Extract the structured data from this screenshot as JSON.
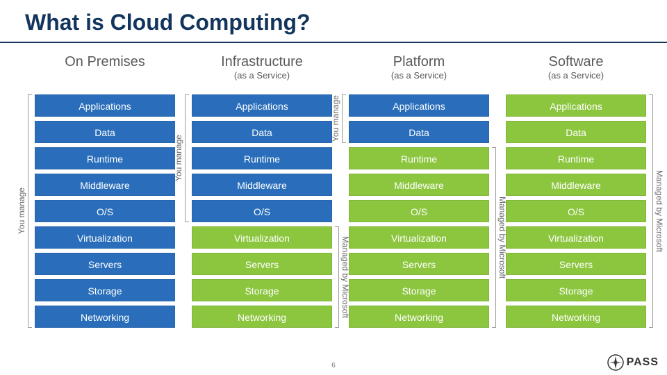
{
  "title": "What is Cloud Computing?",
  "page_number": "6",
  "layers": [
    "Applications",
    "Data",
    "Runtime",
    "Middleware",
    "O/S",
    "Virtualization",
    "Servers",
    "Storage",
    "Networking"
  ],
  "colors": {
    "blue": "#2a6ebb",
    "green": "#8cc63f",
    "title": "#13355d",
    "text_gray": "#666"
  },
  "labels": {
    "you_manage": "You manage",
    "managed_by": "Managed by Microsoft"
  },
  "columns": [
    {
      "title": "On Premises",
      "subtitle": "",
      "manage_count": 9,
      "you_label": "You manage",
      "ms_label": ""
    },
    {
      "title": "Infrastructure",
      "subtitle": "(as a Service)",
      "manage_count": 5,
      "you_label": "You manage",
      "ms_label": "Managed by Microsoft"
    },
    {
      "title": "Platform",
      "subtitle": "(as a Service)",
      "manage_count": 2,
      "you_label": "You manage",
      "ms_label": "Managed by Microsoft"
    },
    {
      "title": "Software",
      "subtitle": "(as a Service)",
      "manage_count": 0,
      "you_label": "",
      "ms_label": "Managed by Microsoft"
    }
  ],
  "logo": {
    "text": "PASS",
    "compass_color": "#333"
  }
}
